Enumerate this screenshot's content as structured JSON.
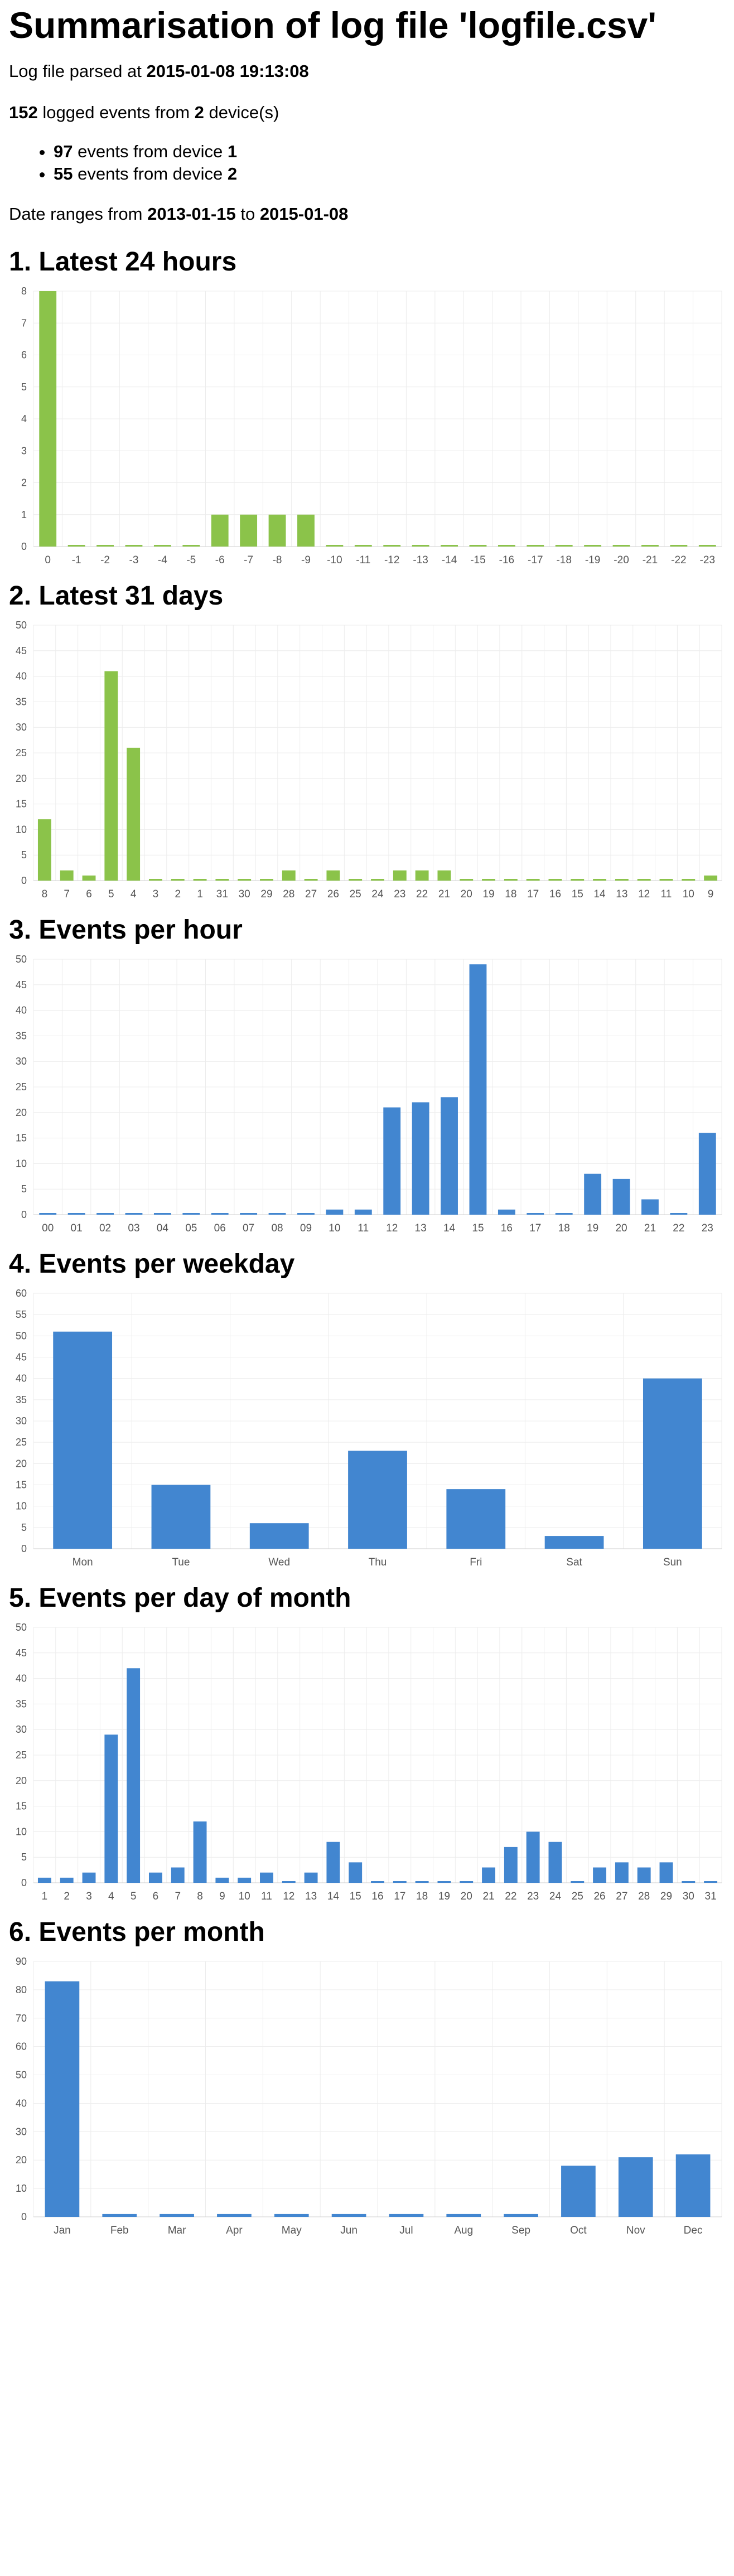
{
  "title": "Summarisation of log file 'logfile.csv'",
  "summary": {
    "parsed_prefix": "Log file parsed at",
    "parsed_at": "2015-01-08 19:13:08",
    "events_total": "152",
    "events_text_1": "logged events from",
    "devices_total": "2",
    "events_text_2": "device(s)",
    "device_lines": [
      {
        "count": "97",
        "text": "events from device",
        "device": "1"
      },
      {
        "count": "55",
        "text": "events from device",
        "device": "2"
      }
    ],
    "range_prefix": "Date ranges from",
    "range_from": "2013-01-15",
    "range_mid": "to",
    "range_to": "2015-01-08"
  },
  "colors": {
    "green": "#8bc34a",
    "blue": "#4286d0",
    "grid": "#ececec",
    "axis": "#555555"
  },
  "chart_data": [
    {
      "heading": "1. Latest 24 hours",
      "type": "bar",
      "color": "green",
      "categories": [
        "0",
        "-1",
        "-2",
        "-3",
        "-4",
        "-5",
        "-6",
        "-7",
        "-8",
        "-9",
        "-10",
        "-11",
        "-12",
        "-13",
        "-14",
        "-15",
        "-16",
        "-17",
        "-18",
        "-19",
        "-20",
        "-21",
        "-22",
        "-23"
      ],
      "values": [
        8,
        0,
        0,
        0,
        0,
        0,
        1,
        1,
        1,
        1,
        0,
        0,
        0,
        0,
        0,
        0,
        0,
        0,
        0,
        0,
        0,
        0,
        0,
        0
      ],
      "ylim": [
        0,
        8
      ],
      "yticks": [
        0,
        1,
        2,
        3,
        4,
        5,
        6,
        7,
        8
      ],
      "grid": true
    },
    {
      "heading": "2. Latest 31 days",
      "type": "bar",
      "color": "green",
      "categories": [
        "8",
        "7",
        "6",
        "5",
        "4",
        "3",
        "2",
        "1",
        "31",
        "30",
        "29",
        "28",
        "27",
        "26",
        "25",
        "24",
        "23",
        "22",
        "21",
        "20",
        "19",
        "18",
        "17",
        "16",
        "15",
        "14",
        "13",
        "12",
        "11",
        "10",
        "9"
      ],
      "values": [
        12,
        2,
        1,
        41,
        26,
        0,
        0,
        0,
        0,
        0,
        0,
        2,
        0,
        2,
        0,
        0,
        2,
        2,
        2,
        0,
        0,
        0,
        0,
        0,
        0,
        0,
        0,
        0,
        0,
        0,
        1
      ],
      "ylim": [
        0,
        50
      ],
      "yticks": [
        0,
        5,
        10,
        15,
        20,
        25,
        30,
        35,
        40,
        45,
        50
      ],
      "grid": true
    },
    {
      "heading": "3. Events per hour",
      "type": "bar",
      "color": "blue",
      "categories": [
        "00",
        "01",
        "02",
        "03",
        "04",
        "05",
        "06",
        "07",
        "08",
        "09",
        "10",
        "11",
        "12",
        "13",
        "14",
        "15",
        "16",
        "17",
        "18",
        "19",
        "20",
        "21",
        "22",
        "23"
      ],
      "values": [
        0,
        0,
        0,
        0,
        0,
        0,
        0,
        0,
        0,
        0,
        1,
        1,
        21,
        22,
        23,
        49,
        1,
        0,
        0,
        8,
        7,
        3,
        0,
        16
      ],
      "ylim": [
        0,
        50
      ],
      "yticks": [
        0,
        5,
        10,
        15,
        20,
        25,
        30,
        35,
        40,
        45,
        50
      ],
      "grid": true
    },
    {
      "heading": "4. Events per weekday",
      "type": "bar",
      "color": "blue",
      "categories": [
        "Mon",
        "Tue",
        "Wed",
        "Thu",
        "Fri",
        "Sat",
        "Sun"
      ],
      "values": [
        51,
        15,
        6,
        23,
        14,
        3,
        40
      ],
      "ylim": [
        0,
        60
      ],
      "yticks": [
        0,
        5,
        10,
        15,
        20,
        25,
        30,
        35,
        40,
        45,
        50,
        55,
        60
      ],
      "grid": true
    },
    {
      "heading": "5. Events per day of month",
      "type": "bar",
      "color": "blue",
      "categories": [
        "1",
        "2",
        "3",
        "4",
        "5",
        "6",
        "7",
        "8",
        "9",
        "10",
        "11",
        "12",
        "13",
        "14",
        "15",
        "16",
        "17",
        "18",
        "19",
        "20",
        "21",
        "22",
        "23",
        "24",
        "25",
        "26",
        "27",
        "28",
        "29",
        "30",
        "31"
      ],
      "values": [
        1,
        1,
        2,
        29,
        42,
        2,
        3,
        12,
        1,
        1,
        2,
        0,
        2,
        8,
        4,
        0,
        0,
        0,
        0,
        0,
        3,
        7,
        10,
        8,
        0,
        3,
        4,
        3,
        4,
        0,
        0
      ],
      "ylim": [
        0,
        50
      ],
      "yticks": [
        0,
        5,
        10,
        15,
        20,
        25,
        30,
        35,
        40,
        45,
        50
      ],
      "grid": true
    },
    {
      "heading": "6. Events per month",
      "type": "bar",
      "color": "blue",
      "categories": [
        "Jan",
        "Feb",
        "Mar",
        "Apr",
        "May",
        "Jun",
        "Jul",
        "Aug",
        "Sep",
        "Oct",
        "Nov",
        "Dec"
      ],
      "values": [
        83,
        1,
        1,
        1,
        1,
        1,
        1,
        1,
        1,
        18,
        21,
        22
      ],
      "ylim": [
        0,
        90
      ],
      "yticks": [
        0,
        10,
        20,
        30,
        40,
        50,
        60,
        70,
        80,
        90
      ],
      "grid": true
    }
  ]
}
